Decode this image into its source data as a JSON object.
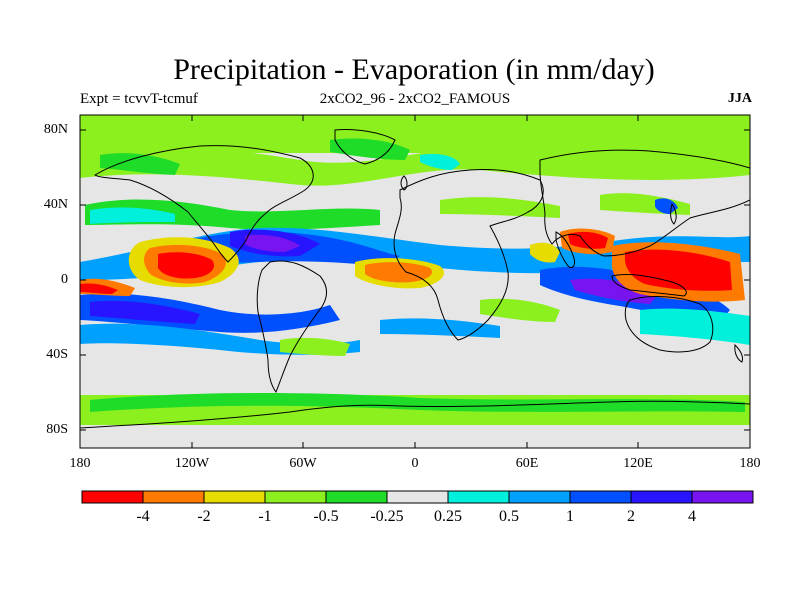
{
  "title": "Precipitation - Evaporation (in mm/day)",
  "left_subtitle": "Expt = tcvvT-tcmuf",
  "center_subtitle": "2xCO2_96 - 2xCO2_FAMOUS",
  "right_subtitle": "JJA",
  "lat_labels": [
    "80N",
    "40N",
    "0",
    "40S",
    "80S"
  ],
  "lon_labels": [
    "180",
    "120W",
    "60W",
    "0",
    "60E",
    "120E",
    "180"
  ],
  "colorbar": {
    "colors": [
      "#ff0000",
      "#ff7a00",
      "#e6dc00",
      "#8cf01e",
      "#1edc28",
      "#e6e6e6",
      "#00f0dc",
      "#00a0ff",
      "#0050ff",
      "#2814ff",
      "#7814f0"
    ],
    "labels": [
      "-4",
      "-2",
      "-1",
      "-0.5",
      "-0.25",
      "0.25",
      "0.5",
      "1",
      "2",
      "4"
    ]
  },
  "colors": {
    "coastline": "#000000",
    "frame": "#000000",
    "background": "#ffffff"
  }
}
